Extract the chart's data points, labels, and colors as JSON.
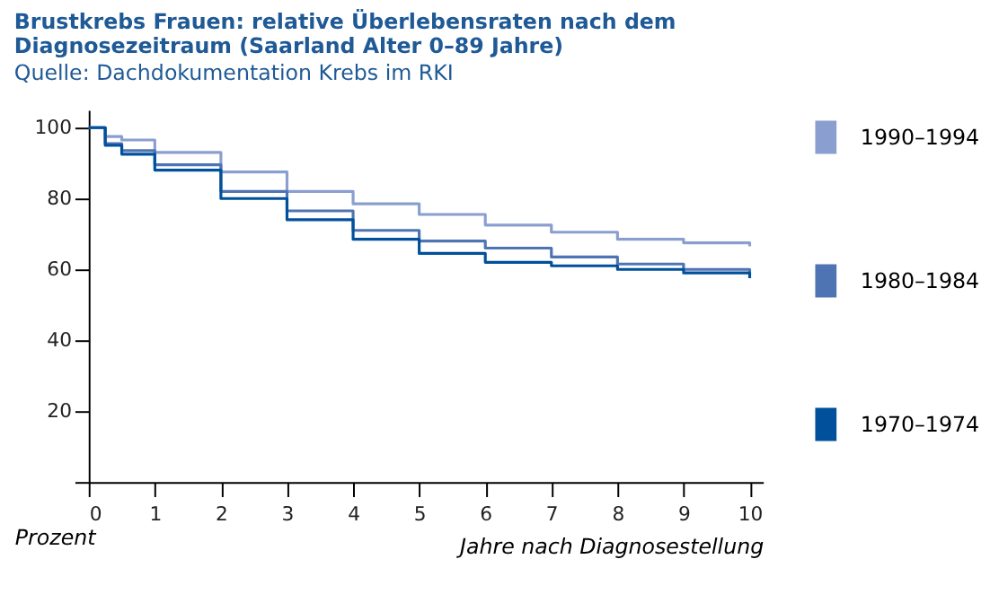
{
  "chart_data": {
    "type": "step",
    "title": [
      "Brustkrebs Frauen: relative Überlebensraten nach dem",
      "Diagnosezeitraum (Saarland Alter 0–89 Jahre)"
    ],
    "subtitle": "Quelle: Dachdokumentation Krebs im RKI",
    "xlabel": "Jahre nach Diagnosestellung",
    "ylabel": "Prozent",
    "x": [
      0,
      0.25,
      0.5,
      1,
      2,
      3,
      4,
      5,
      6,
      7,
      8,
      9,
      10
    ],
    "series": [
      {
        "name": "1990–1994",
        "color": "#8a9fcf",
        "values": [
          100,
          97.5,
          96.5,
          93,
          87.5,
          82,
          78.5,
          75.5,
          72.5,
          70.5,
          68.5,
          67.5,
          66.5
        ]
      },
      {
        "name": "1980–1984",
        "color": "#4f74b3",
        "values": [
          100,
          95.5,
          93.5,
          89.5,
          82,
          76.5,
          71,
          68,
          66,
          63.5,
          61.5,
          60,
          58.5
        ]
      },
      {
        "name": "1970–1974",
        "color": "#00509b",
        "values": [
          100,
          95,
          92.5,
          88,
          80,
          74,
          68.5,
          64.5,
          62,
          61,
          60,
          59,
          57.5
        ]
      }
    ],
    "xlim": [
      0,
      10.2
    ],
    "ylim": [
      0,
      105
    ],
    "xticks": [
      0,
      1,
      2,
      3,
      4,
      5,
      6,
      7,
      8,
      9,
      10
    ],
    "yticks": [
      {
        "value": 0,
        "label": null
      },
      20,
      40,
      60,
      80,
      100
    ],
    "grid": false,
    "legend": "right",
    "marker": "none",
    "line_style": "solid"
  }
}
